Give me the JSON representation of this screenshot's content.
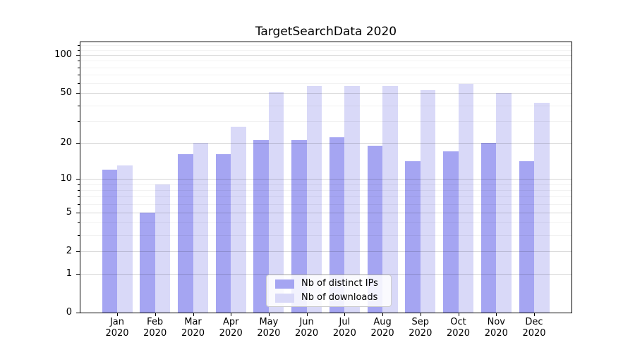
{
  "chart_data": {
    "type": "bar",
    "title": "TargetSearchData 2020",
    "categories": [
      {
        "month": "Jan",
        "year": "2020"
      },
      {
        "month": "Feb",
        "year": "2020"
      },
      {
        "month": "Mar",
        "year": "2020"
      },
      {
        "month": "Apr",
        "year": "2020"
      },
      {
        "month": "May",
        "year": "2020"
      },
      {
        "month": "Jun",
        "year": "2020"
      },
      {
        "month": "Jul",
        "year": "2020"
      },
      {
        "month": "Aug",
        "year": "2020"
      },
      {
        "month": "Sep",
        "year": "2020"
      },
      {
        "month": "Oct",
        "year": "2020"
      },
      {
        "month": "Nov",
        "year": "2020"
      },
      {
        "month": "Dec",
        "year": "2020"
      }
    ],
    "series": [
      {
        "name": "Nb of distinct IPs",
        "color": "#a5a5f2",
        "values": [
          12,
          5,
          16,
          16,
          21,
          21,
          22,
          19,
          14,
          17,
          20,
          14
        ]
      },
      {
        "name": "Nb of downloads",
        "color": "#d9d9f8",
        "values": [
          13,
          9,
          20,
          27,
          51,
          57,
          57,
          57,
          53,
          59,
          50,
          42
        ]
      }
    ],
    "yscale": "log1p",
    "ylim": [
      0,
      126
    ],
    "y_major_ticks": [
      0,
      1,
      2,
      5,
      10,
      20,
      50,
      100
    ],
    "y_tick_labels": [
      "0",
      "1",
      "2",
      "5",
      "10",
      "20",
      "50",
      "100"
    ],
    "y_minor_ticks": [
      3,
      4,
      6,
      7,
      8,
      9,
      30,
      40,
      60,
      70,
      80,
      90,
      110,
      120
    ],
    "grid": true,
    "legend_position": "lower-center",
    "xlabel": "",
    "ylabel": ""
  }
}
